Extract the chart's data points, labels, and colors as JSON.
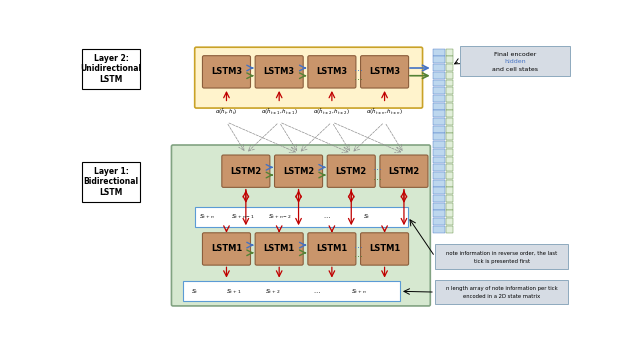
{
  "layer2_bg_color": "#FFF3CC",
  "layer1_bg_color": "#D6E8D0",
  "lstm_box_color": "#C9956B",
  "lstm_edge_color": "#8B5E3C",
  "blue": "#4472C4",
  "green": "#548235",
  "red": "#C00000",
  "gray": "#808080",
  "ann_bg": "#D6DCE4",
  "ann_edge": "#8EA9BE",
  "enc_blue_face": "#BDD7EE",
  "enc_blue_edge": "#4472C4",
  "enc_green_face": "#E2EFDA",
  "enc_green_edge": "#548235",
  "layer2_label": "Layer 2:\nUnidirectional\nLSTM",
  "layer1_label": "Layer 1:\nBidirectional\nLSTM",
  "lstm3_label": "LSTM3",
  "lstm2_label": "LSTM2",
  "lstm1_label": "LSTM1",
  "attn_labels": [
    "$\\alpha(\\hat{h}_t, h_t)$",
    "$\\alpha(\\hat{h}_{t\\pm1}, h_{t\\pm1})$",
    "$\\alpha(\\hat{h}_{t\\pm2}, h_{t\\pm2})$",
    "$\\alpha(\\hat{h}_{t\\pm n}, h_{t\\pm n})$"
  ],
  "s_rev_labels": [
    "$S_{t+n}$",
    "$S_{t+n-1}$",
    "$S_{t+n-2}$",
    "$\\cdots$",
    "$S_t$"
  ],
  "s_fwd_labels": [
    "$S_t$",
    "$S_{t+1}$",
    "$S_{t+2}$",
    "$\\cdots$",
    "$S_{t+n}$"
  ],
  "ann1_lines": [
    "Final encoder hidden",
    "and cell states"
  ],
  "ann2_lines": [
    "note information in reverse order, the last",
    "tick is presented first"
  ],
  "ann3_lines": [
    "n length array of note information per tick",
    "encoded in a 2D state matrix"
  ]
}
